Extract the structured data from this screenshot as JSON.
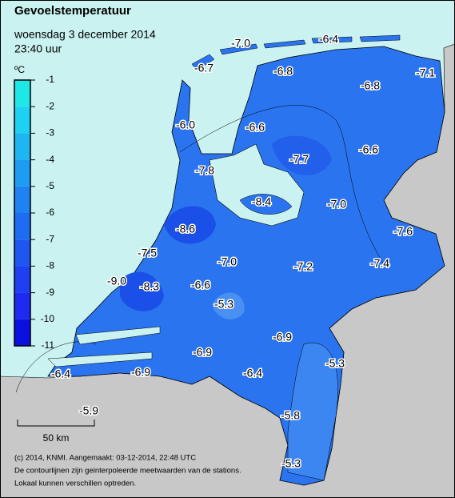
{
  "header": {
    "title": "Gevoelstemperatuur",
    "date": "woensdag 3 december 2014",
    "time": "23:40 uur"
  },
  "legend": {
    "unit": "ºC",
    "ticks": [
      -1,
      -2,
      -3,
      -4,
      -5,
      -6,
      -7,
      -8,
      -9,
      -10,
      -11
    ],
    "colors": [
      "#1ee8e6",
      "#1ed0f2",
      "#1eb6f2",
      "#1e9cf2",
      "#1e82f2",
      "#1e6cf2",
      "#1e56f2",
      "#1e40f2",
      "#1e2af0",
      "#0a10e0"
    ]
  },
  "stations": [
    {
      "label": "-7.0"
    },
    {
      "label": "-6.4"
    },
    {
      "label": "-6.7"
    },
    {
      "label": "-6.8"
    },
    {
      "label": "-7.1"
    },
    {
      "label": "-6.8"
    },
    {
      "label": "-6.0"
    },
    {
      "label": "-6.6"
    },
    {
      "label": "-7.7"
    },
    {
      "label": "-6.6"
    },
    {
      "label": "-7.8"
    },
    {
      "label": "-8.4"
    },
    {
      "label": "-7.0"
    },
    {
      "label": "-8.6"
    },
    {
      "label": "-7.6"
    },
    {
      "label": "-7.5"
    },
    {
      "label": "-7.0"
    },
    {
      "label": "-7.2"
    },
    {
      "label": "-7.4"
    },
    {
      "label": "-9.0"
    },
    {
      "label": "-8.3"
    },
    {
      "label": "-6.6"
    },
    {
      "label": "-5.3"
    },
    {
      "label": "-6.9"
    },
    {
      "label": "-6.9"
    },
    {
      "label": "-5.3"
    },
    {
      "label": "-6.4"
    },
    {
      "label": "-6.9"
    },
    {
      "label": "-6.4"
    },
    {
      "label": "-5.9"
    },
    {
      "label": "-5.8"
    },
    {
      "label": "-5.3"
    }
  ],
  "scale": {
    "label": "50 km"
  },
  "footer": [
    "(c) 2014, KNMI. Aangemaakt: 03-12-2014, 22:48 UTC",
    "De contourlijnen zijn geinterpoleerde meetwaarden van de stations.",
    "Lokaal kunnen verschillen optreden."
  ]
}
